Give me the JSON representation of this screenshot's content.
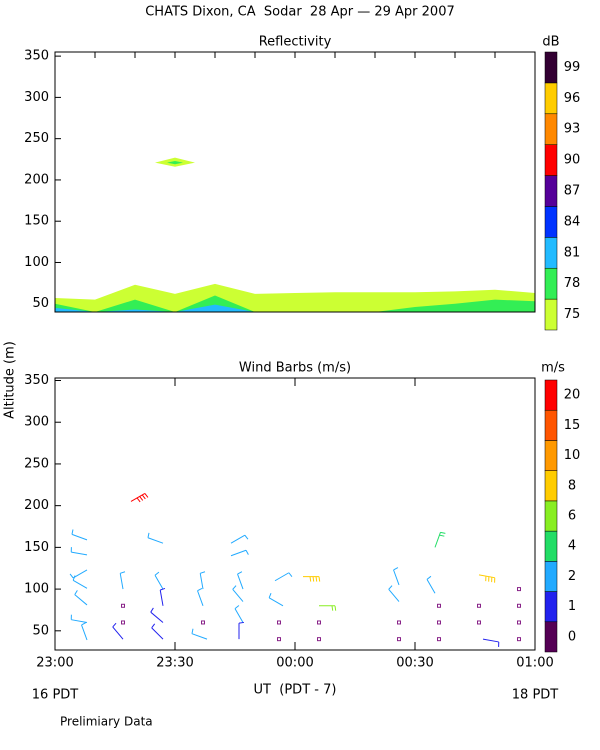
{
  "title": "CHATS Dixon, CA  Sodar  28 Apr — 29 Apr 2007",
  "note": "Prelimiary Data",
  "chart_data": [
    {
      "type": "contour",
      "title": "Reflectivity",
      "xlim": [
        0,
        120
      ],
      "xticks": [
        0,
        10,
        20,
        30,
        40,
        50,
        60,
        70,
        80,
        90,
        100,
        110,
        120
      ],
      "ylim": [
        40,
        355
      ],
      "yticks": [
        50,
        100,
        150,
        200,
        250,
        300,
        350
      ],
      "colorbar": {
        "unit": "dB",
        "levels": [
          75,
          78,
          81,
          84,
          87,
          90,
          93,
          96,
          99
        ],
        "colors": [
          "#ccff33",
          "#33ee55",
          "#22bbff",
          "#0033ff",
          "#550099",
          "#ff0000",
          "#ff8800",
          "#ffcc00",
          "#330033"
        ]
      },
      "bands": [
        {
          "level": 75,
          "x": [
            0,
            10,
            20,
            30,
            40,
            50,
            60,
            70,
            80,
            90,
            100,
            110,
            120
          ],
          "top": [
            57,
            55,
            73,
            62,
            74,
            62,
            63,
            64,
            64,
            64,
            65,
            67,
            63
          ]
        },
        {
          "level": 78,
          "x": [
            0,
            10,
            20,
            30,
            40,
            50,
            60,
            70,
            80,
            90,
            100,
            110,
            120
          ],
          "top": [
            50,
            40,
            55,
            40,
            60,
            40,
            40,
            40,
            40,
            46,
            50,
            55,
            53
          ]
        },
        {
          "level": 81,
          "x": [
            0,
            10,
            20,
            30,
            40,
            50,
            60,
            70,
            80,
            90,
            100,
            110,
            120
          ],
          "top": [
            45,
            40,
            43,
            40,
            49,
            40,
            40,
            40,
            40,
            40,
            40,
            40,
            40
          ]
        }
      ],
      "cells": [
        {
          "level": 75,
          "x": [
            25,
            30,
            35,
            30
          ],
          "y": [
            221,
            227,
            221,
            216
          ]
        },
        {
          "level": 78,
          "x": [
            28,
            30,
            32,
            30
          ],
          "y": [
            221,
            223,
            221,
            219
          ]
        }
      ]
    },
    {
      "type": "barbs",
      "title": "Wind Barbs (m/s)",
      "ylabel": "Altitude (m)",
      "xlabel": "UT  (PDT - 7)",
      "start_label": "16 PDT",
      "end_label": "18 PDT",
      "xlim": [
        0,
        120
      ],
      "xticks": [
        {
          "value": 0,
          "label": "23:00"
        },
        {
          "value": 30,
          "label": "23:30"
        },
        {
          "value": 60,
          "label": "00:00"
        },
        {
          "value": 90,
          "label": "00:30"
        },
        {
          "value": 120,
          "label": "01:00"
        }
      ],
      "ylim": [
        27,
        353
      ],
      "yticks": [
        50,
        100,
        150,
        200,
        250,
        300,
        350
      ],
      "colorbar": {
        "unit": "m/s",
        "levels": [
          0,
          1,
          2,
          4,
          6,
          8,
          10,
          15,
          20
        ],
        "colors": [
          "#550055",
          "#2222ee",
          "#22aaff",
          "#22dd66",
          "#88ee22",
          "#ffcc00",
          "#ff9900",
          "#ff5500",
          "#ff0000"
        ]
      },
      "barbs": {
        "x": [
          8,
          8,
          8,
          8,
          8,
          8,
          8,
          17,
          17,
          17,
          17,
          19,
          27,
          27,
          27,
          27,
          27,
          44,
          44,
          37,
          37,
          37,
          38,
          47,
          47,
          47,
          46,
          55,
          57,
          56,
          56,
          62,
          66,
          66,
          66,
          86,
          86,
          86,
          86,
          95,
          95,
          96,
          96,
          96,
          106,
          106,
          106,
          107,
          116,
          116,
          116,
          116
        ],
        "y": [
          159,
          141,
          123,
          101,
          81,
          60,
          39,
          100,
          80,
          60,
          40,
          205,
          155,
          100,
          80,
          60,
          40,
          155,
          140,
          100,
          80,
          60,
          40,
          100,
          85,
          60,
          40,
          110,
          80,
          60,
          40,
          115,
          80,
          60,
          40,
          105,
          85,
          60,
          40,
          150,
          95,
          80,
          60,
          40,
          117,
          80,
          60,
          40,
          100,
          80,
          60,
          40
        ],
        "speed": [
          3,
          3,
          3,
          3,
          3,
          3,
          3,
          3,
          0,
          0,
          1.5,
          20,
          3,
          3,
          1.5,
          1.5,
          1.5,
          3,
          3,
          3,
          3,
          0,
          3,
          3,
          3,
          3,
          1.5,
          3,
          3,
          0,
          0,
          9,
          6,
          0,
          0,
          3,
          3,
          0,
          0,
          5,
          3,
          0,
          0,
          0,
          9,
          0,
          0,
          1.5,
          0,
          0,
          0,
          0
        ],
        "direction": [
          290,
          280,
          240,
          300,
          310,
          280,
          340,
          350,
          0,
          0,
          320,
          60,
          290,
          330,
          350,
          310,
          315,
          60,
          70,
          350,
          340,
          0,
          290,
          340,
          320,
          330,
          0,
          60,
          300,
          0,
          0,
          90,
          90,
          0,
          0,
          340,
          320,
          0,
          0,
          20,
          330,
          0,
          0,
          0,
          100,
          0,
          0,
          100,
          0,
          0,
          0,
          0
        ]
      }
    }
  ]
}
